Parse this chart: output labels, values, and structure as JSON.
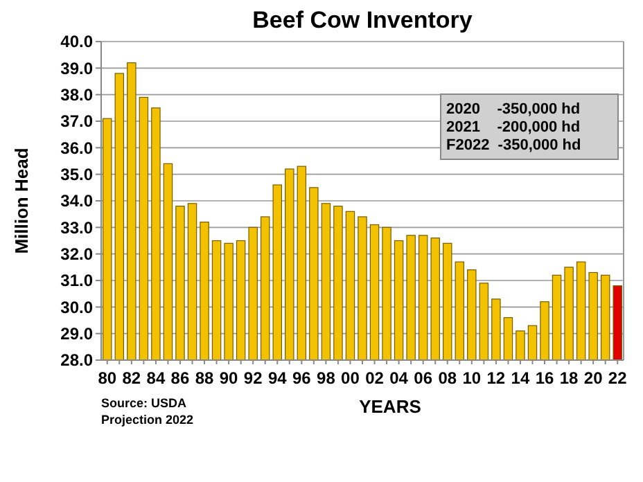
{
  "chart_data": {
    "type": "bar",
    "title": "Beef Cow Inventory",
    "xlabel": "YEARS",
    "ylabel": "Million Head",
    "categories": [
      "80",
      null,
      "82",
      null,
      "84",
      null,
      "86",
      null,
      "88",
      null,
      "90",
      null,
      "92",
      null,
      "94",
      null,
      "96",
      null,
      "98",
      null,
      "00",
      null,
      "02",
      null,
      "04",
      null,
      "06",
      null,
      "08",
      null,
      "10",
      null,
      "12",
      null,
      "14",
      null,
      "16",
      null,
      "18",
      null,
      "20",
      null,
      "22"
    ],
    "values": [
      37.1,
      38.8,
      39.2,
      37.9,
      37.5,
      35.4,
      33.8,
      33.9,
      33.2,
      32.5,
      32.4,
      32.5,
      33.0,
      33.4,
      34.6,
      35.2,
      35.3,
      34.5,
      33.9,
      33.8,
      33.6,
      33.4,
      33.1,
      33.0,
      32.5,
      32.7,
      32.7,
      32.6,
      32.4,
      31.7,
      31.4,
      30.9,
      30.3,
      29.6,
      29.1,
      29.3,
      30.2,
      31.2,
      31.5,
      31.7,
      31.3,
      31.2,
      30.8
    ],
    "colors": [
      "#f2c200",
      "#f2c200",
      "#f2c200",
      "#f2c200",
      "#f2c200",
      "#f2c200",
      "#f2c200",
      "#f2c200",
      "#f2c200",
      "#f2c200",
      "#f2c200",
      "#f2c200",
      "#f2c200",
      "#f2c200",
      "#f2c200",
      "#f2c200",
      "#f2c200",
      "#f2c200",
      "#f2c200",
      "#f2c200",
      "#f2c200",
      "#f2c200",
      "#f2c200",
      "#f2c200",
      "#f2c200",
      "#f2c200",
      "#f2c200",
      "#f2c200",
      "#f2c200",
      "#f2c200",
      "#f2c200",
      "#f2c200",
      "#f2c200",
      "#f2c200",
      "#f2c200",
      "#f2c200",
      "#f2c200",
      "#f2c200",
      "#f2c200",
      "#f2c200",
      "#f2c200",
      "#f2c200",
      "#e00000"
    ],
    "ylim": [
      28,
      40
    ],
    "yticks": [
      {
        "value": 28,
        "label": "28.0"
      },
      {
        "value": 29,
        "label": "29.0"
      },
      {
        "value": 30,
        "label": "30.0"
      },
      {
        "value": 31,
        "label": "31.0"
      },
      {
        "value": 32,
        "label": "32.0"
      },
      {
        "value": 33,
        "label": "33.0"
      },
      {
        "value": 34,
        "label": "34.0"
      },
      {
        "value": 35,
        "label": "35.0"
      },
      {
        "value": 36,
        "label": "36.0"
      },
      {
        "value": 37,
        "label": "37.0"
      },
      {
        "value": 38,
        "label": "38.0"
      },
      {
        "value": 39,
        "label": "39.0"
      },
      {
        "value": 40,
        "label": "40.0"
      }
    ],
    "grid": "y",
    "annotations": [
      "2020    -350,000 hd",
      "2021    -200,000 hd",
      "F2022  -350,000 hd",
      "Source: USDA",
      "Projection 2022"
    ]
  }
}
